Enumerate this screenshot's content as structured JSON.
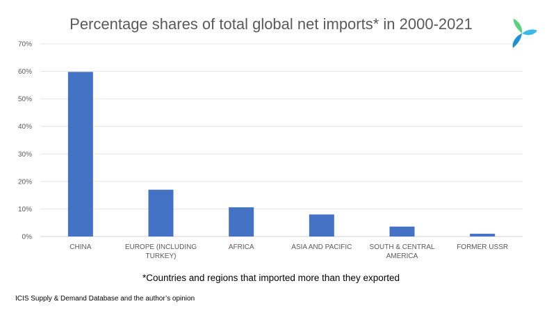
{
  "chart_data": {
    "type": "bar",
    "title": "Percentage shares of total global net imports* in 2000-2021",
    "categories": [
      "CHINA",
      "EUROPE (INCLUDING TURKEY)",
      "AFRICA",
      "ASIA AND PACIFIC",
      "SOUTH & CENTRAL AMERICA",
      "FORMER USSR"
    ],
    "values": [
      59.8,
      17.0,
      10.6,
      8.0,
      3.6,
      1.0
    ],
    "ylim": [
      0,
      70
    ],
    "yticks": [
      "0%",
      "10%",
      "20%",
      "30%",
      "40%",
      "50%",
      "60%",
      "70%"
    ],
    "xlabel": "",
    "ylabel": "",
    "grid": true,
    "bar_color": "#4472C4"
  },
  "footnote": "*Countries and regions that imported more than they exported",
  "source": "ICIS Supply & Demand Database and the author’s opinion",
  "logo": {
    "icon": "icis-logo-icon",
    "colors": [
      "#3BB9E8",
      "#56D27A",
      "#1F8FD6"
    ]
  }
}
